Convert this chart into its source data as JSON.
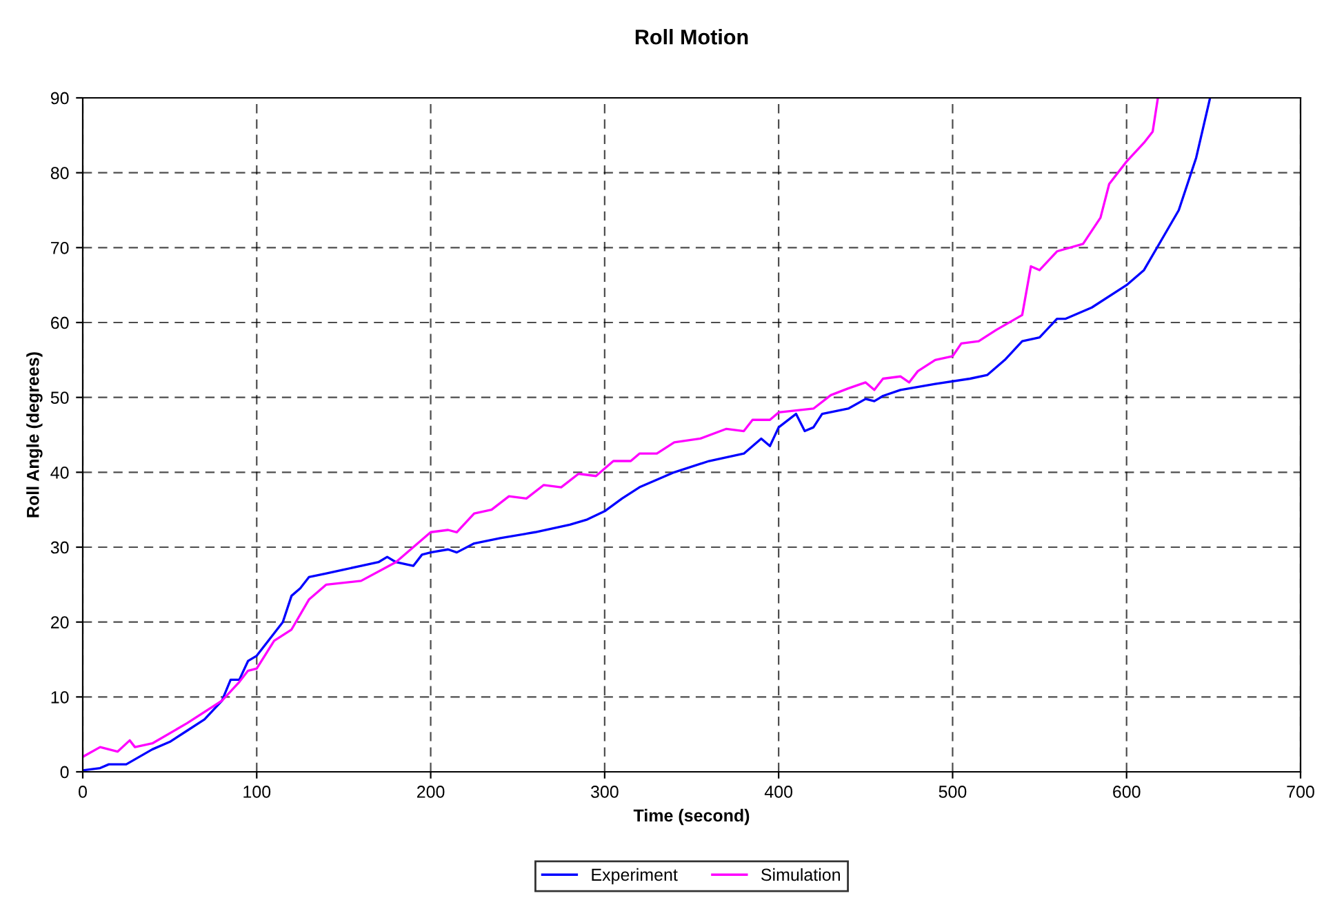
{
  "chart_data": {
    "type": "line",
    "title": "Roll Motion",
    "xlabel": "Time (second)",
    "ylabel": "Roll Angle (degrees)",
    "xlim": [
      0,
      700
    ],
    "xticks": [
      0,
      100,
      200,
      300,
      400,
      500,
      600,
      700
    ],
    "ylim": [
      0,
      90
    ],
    "yticks": [
      0,
      10,
      20,
      30,
      40,
      50,
      60,
      70,
      80,
      90
    ],
    "grid": true,
    "legend": "bottom",
    "line_style": "solid",
    "series": [
      {
        "name": "Experiment",
        "color": "#0000ff",
        "x": [
          0,
          10,
          15,
          25,
          40,
          50,
          60,
          70,
          80,
          85,
          90,
          95,
          100,
          110,
          115,
          120,
          125,
          130,
          140,
          150,
          160,
          170,
          175,
          180,
          190,
          195,
          200,
          210,
          215,
          225,
          240,
          260,
          270,
          280,
          290,
          300,
          310,
          320,
          340,
          360,
          380,
          390,
          395,
          400,
          410,
          415,
          420,
          425,
          440,
          450,
          455,
          460,
          470,
          490,
          510,
          520,
          530,
          540,
          550,
          560,
          565,
          580,
          600,
          610,
          620,
          630,
          640,
          648
        ],
        "values": [
          0.2,
          0.5,
          1,
          1,
          3,
          4,
          5.5,
          7,
          9.5,
          12.3,
          12.3,
          14.8,
          15.5,
          18.5,
          20,
          23.5,
          24.5,
          26,
          26.5,
          27,
          27.5,
          28,
          28.7,
          28,
          27.5,
          29,
          29.3,
          29.7,
          29.3,
          30.5,
          31.2,
          32,
          32.5,
          33,
          33.7,
          34.8,
          36.5,
          38,
          40,
          41.5,
          42.5,
          44.5,
          43.5,
          46,
          47.8,
          45.5,
          46,
          47.8,
          48.5,
          49.8,
          49.5,
          50.2,
          51,
          51.8,
          52.5,
          53,
          55,
          57.5,
          58,
          60.5,
          60.5,
          62,
          65,
          67,
          71,
          75,
          82,
          90
        ]
      },
      {
        "name": "Simulation",
        "color": "#ff00ff",
        "x": [
          0,
          10,
          20,
          27,
          30,
          40,
          60,
          80,
          90,
          95,
          100,
          110,
          120,
          130,
          140,
          160,
          180,
          190,
          200,
          210,
          215,
          225,
          235,
          245,
          255,
          265,
          275,
          285,
          295,
          305,
          315,
          320,
          330,
          340,
          355,
          370,
          380,
          385,
          395,
          400,
          420,
          430,
          440,
          450,
          455,
          460,
          470,
          475,
          480,
          490,
          500,
          505,
          515,
          525,
          540,
          545,
          550,
          560,
          575,
          585,
          590,
          600,
          610,
          615,
          618
        ],
        "values": [
          2,
          3.3,
          2.7,
          4.2,
          3.3,
          3.8,
          6.5,
          9.5,
          12,
          13.5,
          13.8,
          17.5,
          19,
          23,
          25,
          25.5,
          28,
          30,
          32,
          32.3,
          32,
          34.5,
          35,
          36.8,
          36.5,
          38.3,
          38,
          39.8,
          39.5,
          41.5,
          41.5,
          42.5,
          42.5,
          44,
          44.5,
          45.8,
          45.5,
          47,
          47,
          48,
          48.5,
          50.3,
          51.2,
          52,
          51,
          52.5,
          52.8,
          52,
          53.5,
          55,
          55.5,
          57.2,
          57.5,
          59,
          61,
          67.5,
          67,
          69.5,
          70.5,
          74,
          78.5,
          81.5,
          84,
          85.5,
          90
        ]
      }
    ]
  }
}
